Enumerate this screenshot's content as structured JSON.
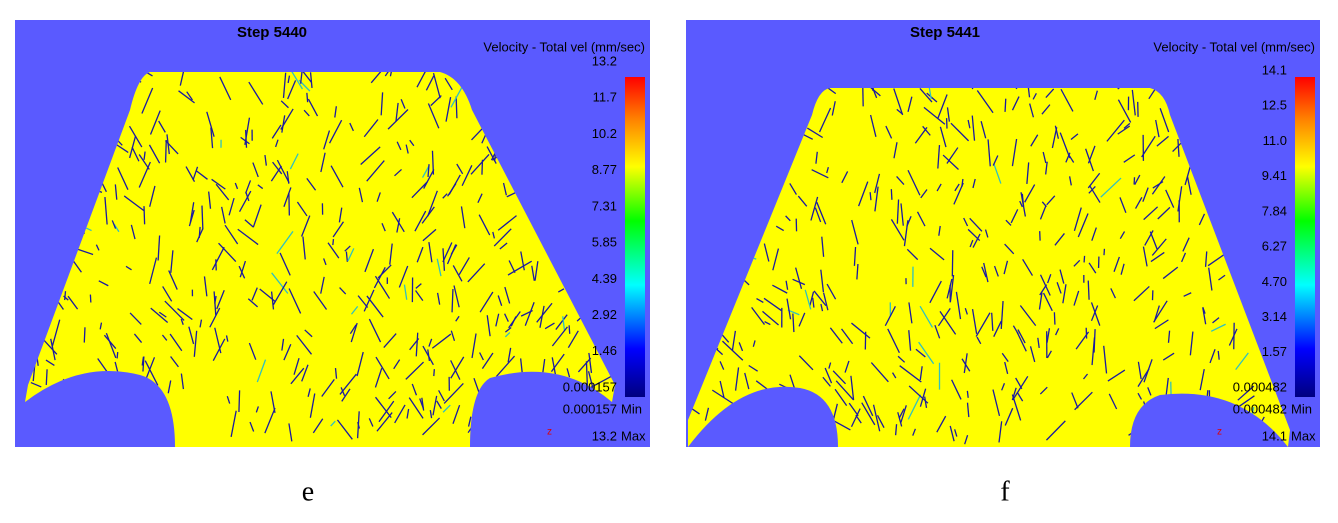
{
  "panels": [
    {
      "title": "Step 5440",
      "legend_title": "Velocity - Total vel (mm/sec)",
      "ticks": [
        "13.2",
        "11.7",
        "10.2",
        "8.77",
        "7.31",
        "5.85",
        "4.39",
        "2.92",
        "1.46",
        "0.000157"
      ],
      "min_value": "0.000157",
      "min_label": "Min",
      "max_value": "13.2",
      "max_label": "Max",
      "axis_mark": "z",
      "caption": "e"
    },
    {
      "title": "Step 5441",
      "legend_title": "Velocity - Total vel (mm/sec)",
      "ticks": [
        "14.1",
        "12.5",
        "11.0",
        "9.41",
        "7.84",
        "6.27",
        "4.70",
        "3.14",
        "1.57",
        "0.000482"
      ],
      "min_value": "0.000482",
      "min_label": "Min",
      "max_value": "14.1",
      "max_label": "Max",
      "axis_mark": "z",
      "caption": "f"
    }
  ]
}
